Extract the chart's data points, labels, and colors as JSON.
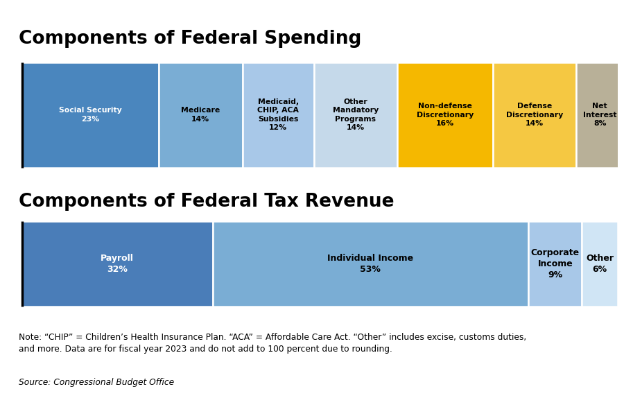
{
  "title1": "Components of Federal Spending",
  "title2": "Components of Federal Tax Revenue",
  "spending": {
    "labels_line1": [
      "Social Security",
      "Medicare",
      "Medicaid,\nCHIP, ACA\nSubsidies",
      "Other\nMandatory\nPrograms",
      "Non-defense\nDiscretionary",
      "Defense\nDiscretionary",
      "Net\nInterest"
    ],
    "labels_pct": [
      "23%",
      "14%",
      "12%",
      "14%",
      "16%",
      "14%",
      "8%"
    ],
    "values": [
      23,
      14,
      12,
      14,
      16,
      14,
      8
    ],
    "colors": [
      "#4a86be",
      "#7aadd4",
      "#a8c8e8",
      "#c5d9ea",
      "#f5b800",
      "#f5c842",
      "#b8b098"
    ],
    "text_colors": [
      "white",
      "black",
      "black",
      "black",
      "black",
      "black",
      "black"
    ]
  },
  "revenue": {
    "labels_line1": [
      "Payroll",
      "Individual Income",
      "Corporate\nIncome",
      "Other"
    ],
    "labels_pct": [
      "32%",
      "53%",
      "9%",
      "6%"
    ],
    "values": [
      32,
      53,
      9,
      6
    ],
    "colors": [
      "#4a7db8",
      "#7aadd4",
      "#a8c8e8",
      "#d0e5f5"
    ],
    "text_colors": [
      "white",
      "black",
      "black",
      "black"
    ]
  },
  "note": "Note: “CHIP” = Children’s Health Insurance Plan. “ACA” = Affordable Care Act. “Other” includes excise, customs duties,\nand more. Data are for fiscal year 2023 and do not add to 100 percent due to rounding.",
  "source": "Source: Congressional Budget Office"
}
